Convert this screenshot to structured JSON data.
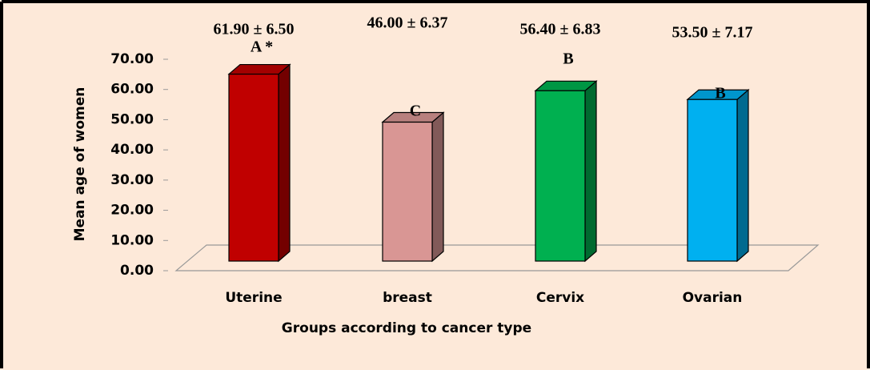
{
  "chart_data": {
    "type": "bar3d",
    "x_label": "Groups according to cancer type",
    "y_label": "Mean age of women",
    "categories": [
      "Uterine",
      "breast",
      "Cervix",
      "Ovarian"
    ],
    "values": [
      61.9,
      46.0,
      56.4,
      53.5
    ],
    "value_labels": [
      "61.90 ± 6.50",
      "46.00 ± 6.37",
      "56.40 ± 6.83",
      "53.50 ± 7.17"
    ],
    "annotations": [
      "A *",
      "C",
      "B",
      "B"
    ],
    "colors": [
      "#c00000",
      "#d99694",
      "#00b050",
      "#00b0f0"
    ],
    "ylim": [
      0,
      70
    ],
    "yticks": [
      {
        "value": 0,
        "label": "0.00"
      },
      {
        "value": 10,
        "label": "10.00"
      },
      {
        "value": 20,
        "label": "20.00"
      },
      {
        "value": 30,
        "label": "30.00"
      },
      {
        "value": 40,
        "label": "40.00"
      },
      {
        "value": 50,
        "label": "50.00"
      },
      {
        "value": 60,
        "label": "60.00"
      },
      {
        "value": 70,
        "label": "70.00"
      }
    ],
    "grid": false
  }
}
